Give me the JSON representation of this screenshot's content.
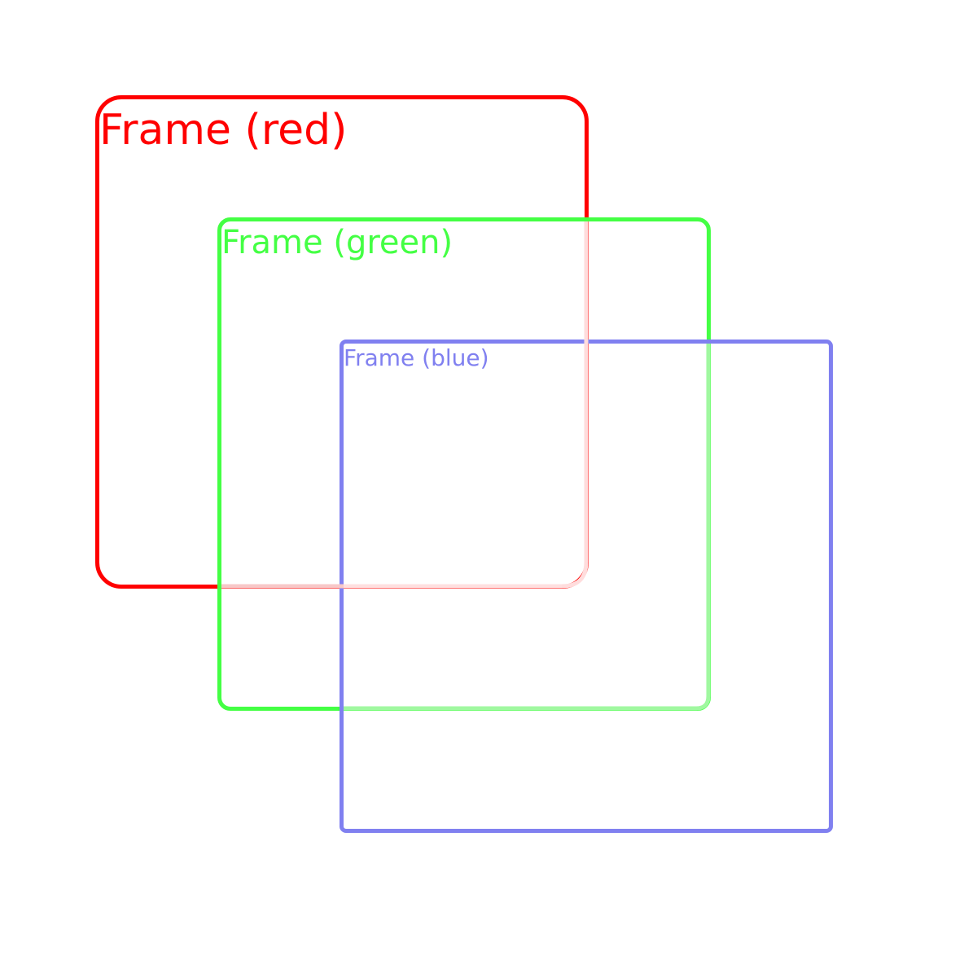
{
  "frames": [
    {
      "id": "red",
      "label": "Frame (red)",
      "color": "#ff0000"
    },
    {
      "id": "green",
      "label": "Frame (green)",
      "color": "#44ff44"
    },
    {
      "id": "blue",
      "label": "Frame (blue)",
      "color": "#8080f0"
    }
  ],
  "labels": {
    "red": "Frame (red)",
    "green": "Frame (green)",
    "blue": "Frame (blue)"
  },
  "colors": {
    "red": "#ff0000",
    "green": "#44ff44",
    "blue": "#8080f0"
  }
}
